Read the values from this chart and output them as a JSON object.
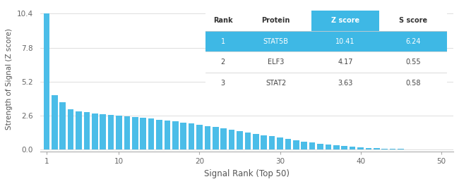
{
  "bar_values": [
    10.41,
    4.17,
    3.63,
    3.1,
    2.95,
    2.85,
    2.78,
    2.72,
    2.68,
    2.62,
    2.55,
    2.5,
    2.45,
    2.38,
    2.3,
    2.22,
    2.15,
    2.08,
    2.0,
    1.92,
    1.82,
    1.72,
    1.62,
    1.52,
    1.42,
    1.32,
    1.22,
    1.12,
    1.02,
    0.92,
    0.82,
    0.72,
    0.63,
    0.55,
    0.47,
    0.4,
    0.33,
    0.27,
    0.22,
    0.18,
    0.14,
    0.11,
    0.09,
    0.07,
    0.05,
    0.04,
    0.03,
    0.02,
    0.01,
    0.005
  ],
  "bar_color": "#4bbde8",
  "xlabel": "Signal Rank (Top 50)",
  "ylabel": "Strength of Signal (Z score)",
  "ylim": [
    -0.15,
    11.0
  ],
  "yticks": [
    0.0,
    2.6,
    5.2,
    7.8,
    10.4
  ],
  "xticks": [
    1,
    10,
    20,
    30,
    40,
    50
  ],
  "table_headers": [
    "Rank",
    "Protein",
    "Z score",
    "S score"
  ],
  "table_data": [
    [
      "1",
      "STAT5B",
      "10.41",
      "6.24"
    ],
    [
      "2",
      "ELF3",
      "4.17",
      "0.55"
    ],
    [
      "3",
      "STAT2",
      "3.63",
      "0.58"
    ]
  ],
  "table_row1_bg": "#3eb8e5",
  "table_row1_text": "#ffffff",
  "table_other_text": "#444444",
  "table_header_text": "#333333",
  "table_zscore_header_bg": "#3eb8e5",
  "table_zscore_header_text": "#ffffff",
  "bg_color": "#ffffff",
  "grid_color": "#d0d0d0",
  "axis_color": "#aaaaaa",
  "tick_color": "#666666",
  "label_color": "#555555"
}
